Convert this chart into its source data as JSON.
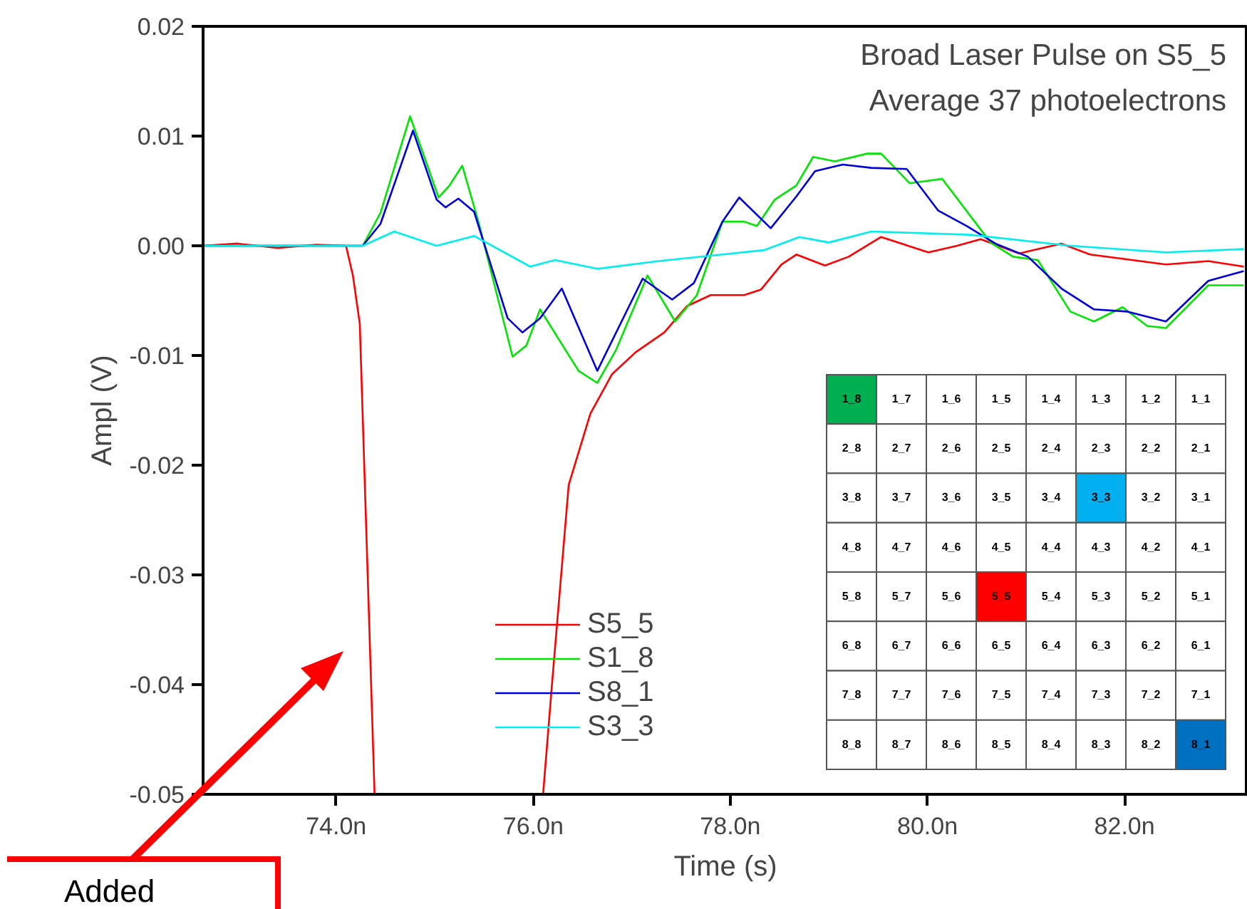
{
  "chart_data": [
    {
      "type": "line",
      "xlabel": "Time (s)",
      "ylabel": "Ampl (V)",
      "annotations": [
        "Broad Laser Pulse on S5_5",
        "Average 37 photoelectrons",
        "Added"
      ],
      "xlim": [
        72.65,
        83.25
      ],
      "ylim": [
        -0.05,
        0.02
      ],
      "xticks": [
        {
          "value": 74,
          "label": "74.0n"
        },
        {
          "value": 76,
          "label": "76.0n"
        },
        {
          "value": 78,
          "label": "78.0n"
        },
        {
          "value": 80,
          "label": "80.0n"
        },
        {
          "value": 82,
          "label": "82.0n"
        }
      ],
      "yticks": [
        {
          "value": -0.05,
          "label": "-0.05"
        },
        {
          "value": -0.04,
          "label": "-0.04"
        },
        {
          "value": -0.03,
          "label": "-0.03"
        },
        {
          "value": -0.02,
          "label": "-0.02"
        },
        {
          "value": -0.01,
          "label": "-0.01"
        },
        {
          "value": 0,
          "label": "0.00"
        },
        {
          "value": 0.01,
          "label": "0.01"
        },
        {
          "value": 0.02,
          "label": "0.02"
        }
      ],
      "grid": false,
      "legend": "bottom",
      "line_style": "solid",
      "series": [
        {
          "name": "S5_5",
          "color": "#ff0000",
          "x": [
            72.65,
            73.0,
            73.4,
            73.8,
            74.1,
            74.17,
            74.24,
            74.39,
            75.2,
            76.1,
            76.19,
            76.36,
            76.58,
            76.8,
            77.04,
            77.33,
            77.56,
            77.8,
            78.14,
            78.31,
            78.52,
            78.67,
            78.96,
            79.2,
            79.53,
            80.01,
            80.3,
            80.54,
            80.93,
            81.36,
            81.65,
            82.42,
            82.85,
            83.21
          ],
          "values": [
            0,
            0.0002,
            -0.0002,
            0.0001,
            0,
            -0.0027,
            -0.0071,
            -0.05,
            null,
            -0.05,
            -0.04,
            -0.0218,
            -0.0153,
            -0.0117,
            -0.0097,
            -0.0079,
            -0.0055,
            -0.0045,
            -0.0045,
            -0.004,
            -0.0017,
            -0.0008,
            -0.0018,
            -0.001,
            0.0008,
            -0.0006,
            0,
            0.0006,
            -0.0007,
            0.0002,
            -0.0008,
            -0.0017,
            -0.0014,
            -0.0019
          ]
        },
        {
          "name": "S1_8",
          "color": "#00e600",
          "x": [
            72.65,
            74.27,
            74.45,
            74.75,
            75.04,
            75.15,
            75.28,
            75.45,
            75.79,
            75.93,
            76.07,
            76.46,
            76.65,
            76.84,
            77.16,
            77.44,
            77.66,
            77.92,
            78.14,
            78.27,
            78.45,
            78.67,
            78.84,
            79.06,
            79.39,
            79.53,
            79.82,
            80.15,
            80.64,
            80.87,
            81.12,
            81.45,
            81.69,
            81.98,
            82.23,
            82.42,
            82.85,
            83.21
          ],
          "values": [
            0,
            0,
            0.003,
            0.0118,
            0.0044,
            0.0055,
            0.0073,
            0.002,
            -0.0101,
            -0.0091,
            -0.0058,
            -0.0114,
            -0.0125,
            -0.0095,
            -0.0027,
            -0.0069,
            -0.0045,
            0.0022,
            0.0022,
            0.0018,
            0.0042,
            0.0055,
            0.0081,
            0.0077,
            0.0084,
            0.0084,
            0.0057,
            0.0061,
            0.0003,
            -0.001,
            -0.0013,
            -0.006,
            -0.0069,
            -0.0056,
            -0.0073,
            -0.0075,
            -0.0036,
            -0.0036
          ]
        },
        {
          "name": "S8_1",
          "color": "#0000dd",
          "x": [
            72.65,
            74.27,
            74.45,
            74.78,
            75.02,
            75.11,
            75.24,
            75.4,
            75.74,
            75.89,
            76.07,
            76.29,
            76.65,
            77.11,
            77.41,
            77.63,
            77.92,
            78.09,
            78.41,
            78.67,
            78.86,
            79.14,
            79.43,
            79.79,
            80.11,
            80.4,
            80.69,
            81.02,
            81.36,
            81.69,
            82.03,
            82.42,
            82.85,
            83.21
          ],
          "values": [
            0,
            0,
            0.002,
            0.0105,
            0.0042,
            0.0035,
            0.0043,
            0.0031,
            -0.0066,
            -0.0079,
            -0.0066,
            -0.0039,
            -0.0114,
            -0.003,
            -0.0049,
            -0.0034,
            0.0022,
            0.0044,
            0.0016,
            0.0045,
            0.0068,
            0.0074,
            0.0071,
            0.007,
            0.0032,
            0.0018,
            0.0002,
            -0.001,
            -0.0039,
            -0.0058,
            -0.006,
            -0.0069,
            -0.0032,
            -0.0023
          ]
        },
        {
          "name": "S3_3",
          "color": "#00eeee",
          "x": [
            72.65,
            74.27,
            74.59,
            75.02,
            75.4,
            75.97,
            76.22,
            76.65,
            77.27,
            78.34,
            78.7,
            79.0,
            79.43,
            80.44,
            81.45,
            82.42,
            83.21
          ],
          "values": [
            0,
            0,
            0.0013,
            0,
            0.0009,
            -0.0019,
            -0.0013,
            -0.0021,
            -0.0014,
            -0.0004,
            0.0008,
            0.0003,
            0.0013,
            0.001,
            0,
            -0.0006,
            -0.0003
          ]
        }
      ]
    },
    {
      "type": "other",
      "cell_labels": [
        [
          "1_8",
          "1_7",
          "1_6",
          "1_5",
          "1_4",
          "1_3",
          "1_2",
          "1_1"
        ],
        [
          "2_8",
          "2_7",
          "2_6",
          "2_5",
          "2_4",
          "2_3",
          "2_2",
          "2_1"
        ],
        [
          "3_8",
          "3_7",
          "3_6",
          "3_5",
          "3_4",
          "3_3",
          "3_2",
          "3_1"
        ],
        [
          "4_8",
          "4_7",
          "4_6",
          "4_5",
          "4_4",
          "4_3",
          "4_2",
          "4_1"
        ],
        [
          "5_8",
          "5_7",
          "5_6",
          "5_5",
          "5_4",
          "5_3",
          "5_2",
          "5_1"
        ],
        [
          "6_8",
          "6_7",
          "6_6",
          "6_5",
          "6_4",
          "6_3",
          "6_2",
          "6_1"
        ],
        [
          "7_8",
          "7_7",
          "7_6",
          "7_5",
          "7_4",
          "7_3",
          "7_2",
          "7_1"
        ],
        [
          "8_8",
          "8_7",
          "8_6",
          "8_5",
          "8_4",
          "8_3",
          "8_2",
          "8_1"
        ]
      ],
      "colors": [
        [
          "#00b050",
          null,
          null,
          null,
          null,
          null,
          null,
          null
        ],
        [
          null,
          null,
          null,
          null,
          null,
          null,
          null,
          null
        ],
        [
          null,
          null,
          null,
          null,
          null,
          "#00b0f0",
          null,
          null
        ],
        [
          null,
          null,
          null,
          null,
          null,
          null,
          null,
          null
        ],
        [
          null,
          null,
          null,
          "#ff0000",
          null,
          null,
          null,
          null
        ],
        [
          null,
          null,
          null,
          null,
          null,
          null,
          null,
          null
        ],
        [
          null,
          null,
          null,
          null,
          null,
          null,
          null,
          null
        ],
        [
          null,
          null,
          null,
          null,
          null,
          null,
          null,
          "#0070c0"
        ]
      ]
    }
  ]
}
